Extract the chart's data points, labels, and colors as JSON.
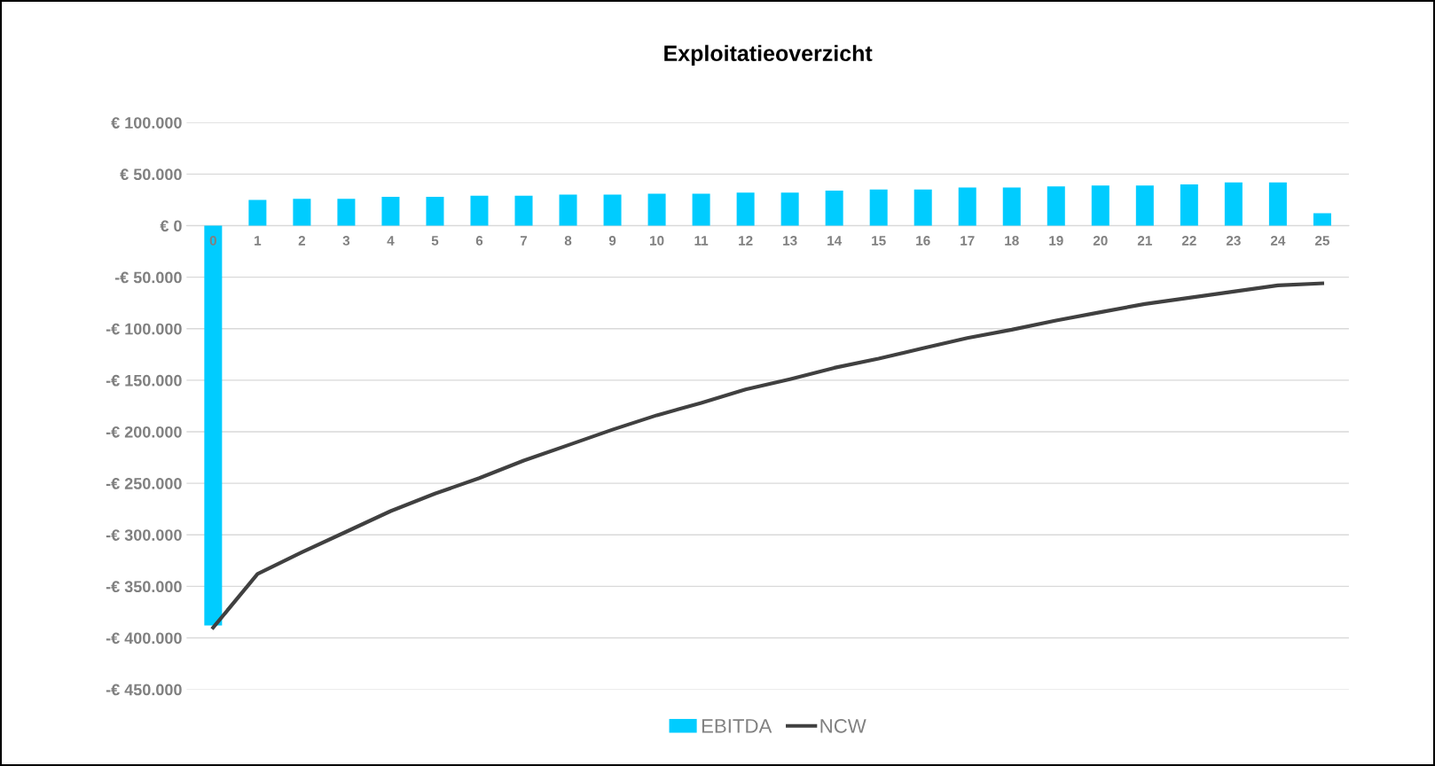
{
  "chart_data": {
    "type": "bar",
    "title": "Exploitatieoverzicht",
    "categories": [
      "0",
      "1",
      "2",
      "3",
      "4",
      "5",
      "6",
      "7",
      "8",
      "9",
      "10",
      "11",
      "12",
      "13",
      "14",
      "15",
      "16",
      "17",
      "18",
      "19",
      "20",
      "21",
      "22",
      "23",
      "24",
      "25"
    ],
    "series": [
      {
        "name": "EBITDA",
        "type": "bar",
        "color": "#00ccff",
        "values": [
          -388000,
          25000,
          26000,
          26000,
          28000,
          28000,
          29000,
          29000,
          30000,
          30000,
          31000,
          31000,
          32000,
          32000,
          34000,
          35000,
          35000,
          37000,
          37000,
          38000,
          39000,
          39000,
          40000,
          42000,
          42000,
          12000
        ]
      },
      {
        "name": "NCW",
        "type": "line",
        "color": "#404040",
        "values": [
          -390000,
          -338000,
          -317000,
          -297000,
          -277000,
          -260000,
          -245000,
          -228000,
          -213000,
          -198000,
          -184000,
          -172000,
          -159000,
          -149000,
          -138000,
          -129000,
          -119000,
          -109000,
          -101000,
          -92000,
          -84000,
          -76000,
          -70000,
          -64000,
          -58000,
          -56000
        ]
      }
    ],
    "ylim": [
      -450000,
      100000
    ],
    "yticks": [
      {
        "value": -450000,
        "label": "-€ 450.000"
      },
      {
        "value": -400000,
        "label": "-€ 400.000"
      },
      {
        "value": -350000,
        "label": "-€ 350.000"
      },
      {
        "value": -300000,
        "label": "-€ 300.000"
      },
      {
        "value": -250000,
        "label": "-€ 250.000"
      },
      {
        "value": -200000,
        "label": "-€ 200.000"
      },
      {
        "value": -150000,
        "label": "-€ 150.000"
      },
      {
        "value": -100000,
        "label": "-€ 100.000"
      },
      {
        "value": -50000,
        "label": "-€ 50.000"
      },
      {
        "value": 0,
        "label": "€ 0"
      },
      {
        "value": 50000,
        "label": "€ 50.000"
      },
      {
        "value": 100000,
        "label": "€ 100.000"
      }
    ],
    "grid": "y",
    "legend": "bottom",
    "marker": "none",
    "line_style": "solid"
  }
}
